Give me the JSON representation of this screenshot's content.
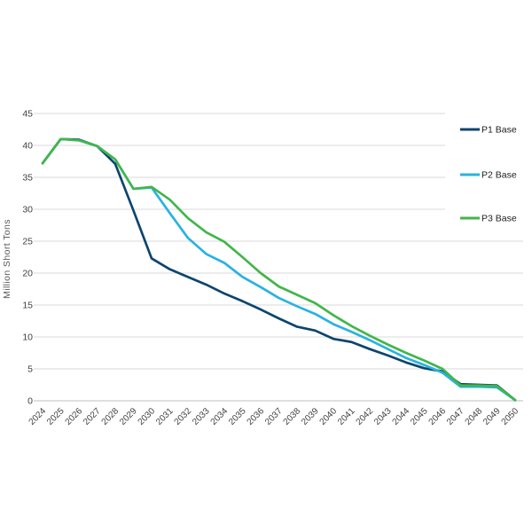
{
  "page": {
    "background_color": "#ffffff"
  },
  "chart_data": {
    "type": "line",
    "title": "",
    "xlabel": "",
    "ylabel": "Million Short Tons",
    "ylim": [
      0,
      45
    ],
    "yticks": [
      0,
      5,
      10,
      15,
      20,
      25,
      30,
      35,
      40,
      45
    ],
    "grid": true,
    "legend_position": "right",
    "x": [
      2024,
      2025,
      2026,
      2027,
      2028,
      2029,
      2030,
      2031,
      2032,
      2033,
      2034,
      2035,
      2036,
      2037,
      2038,
      2039,
      2040,
      2041,
      2042,
      2043,
      2044,
      2045,
      2046,
      2047,
      2048,
      2049,
      2050
    ],
    "series": [
      {
        "name": "P1 Base",
        "color": "#0d456e",
        "values": [
          37.2,
          41.0,
          40.9,
          39.9,
          37.1,
          29.8,
          22.3,
          20.6,
          19.4,
          18.2,
          16.8,
          15.6,
          14.3,
          12.9,
          11.6,
          11.0,
          9.7,
          9.2,
          8.1,
          7.1,
          6.0,
          5.1,
          4.6,
          2.6,
          2.5,
          2.4,
          0.1
        ]
      },
      {
        "name": "P2 Base",
        "color": "#29b2e2",
        "values": [
          37.2,
          41.0,
          40.8,
          39.9,
          37.8,
          33.2,
          33.4,
          29.4,
          25.5,
          23.0,
          21.6,
          19.4,
          17.8,
          16.1,
          14.8,
          13.6,
          12.0,
          10.8,
          9.5,
          8.1,
          6.7,
          5.6,
          4.4,
          2.2,
          2.2,
          2.1,
          0.1
        ]
      },
      {
        "name": "P3 Base",
        "color": "#41b649",
        "values": [
          37.2,
          41.0,
          40.8,
          39.9,
          37.8,
          33.2,
          33.5,
          31.5,
          28.6,
          26.4,
          24.9,
          22.5,
          20.0,
          17.9,
          16.6,
          15.3,
          13.4,
          11.7,
          10.2,
          8.8,
          7.5,
          6.3,
          5.0,
          2.4,
          2.4,
          2.3,
          0.1
        ]
      }
    ],
    "styles": {
      "gridline_color": "#d9d9d9",
      "baseline_color": "#bfbfbf",
      "tick_label_color": "#404040",
      "axis_title_color": "#595959",
      "legend_text_color": "#1a1a1a"
    }
  }
}
